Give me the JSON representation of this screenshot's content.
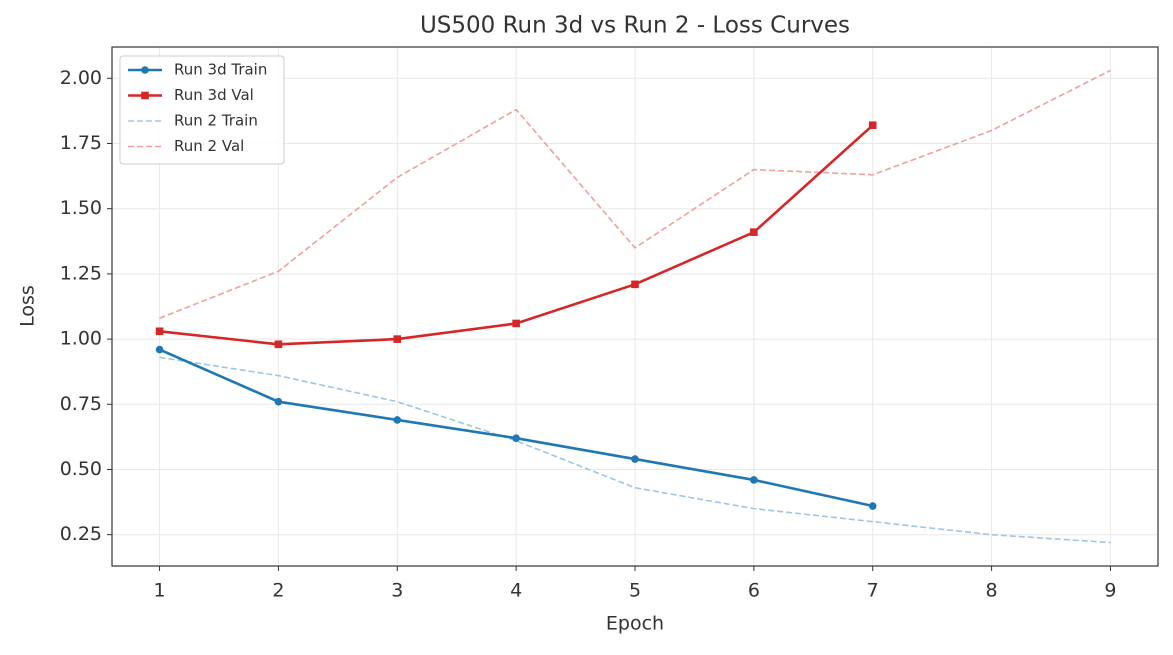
{
  "chart_data": {
    "type": "line",
    "title": "US500 Run 3d vs Run 2 - Loss Curves",
    "x_label": "Epoch",
    "y_label": "Loss",
    "x": [
      1,
      2,
      3,
      4,
      5,
      6,
      7,
      8,
      9
    ],
    "series": [
      {
        "name": "Run 3d Train",
        "color": "#1f77b4",
        "marker": "circle",
        "linestyle": "solid",
        "values": [
          0.96,
          0.76,
          0.69,
          0.62,
          0.54,
          0.46,
          0.36,
          null,
          null
        ]
      },
      {
        "name": "Run 3d Val",
        "color": "#d62728",
        "marker": "square",
        "linestyle": "solid",
        "values": [
          1.03,
          0.98,
          1.0,
          1.06,
          1.21,
          1.41,
          1.82,
          null,
          null
        ]
      },
      {
        "name": "Run 2 Train",
        "color": "#9ec5e3",
        "marker": "none",
        "linestyle": "dashed",
        "values": [
          0.93,
          0.86,
          0.76,
          0.61,
          0.43,
          0.35,
          0.3,
          0.25,
          0.22
        ]
      },
      {
        "name": "Run 2 Val",
        "color": "#efa09c",
        "marker": "none",
        "linestyle": "dashed",
        "values": [
          1.08,
          1.26,
          1.62,
          1.88,
          1.35,
          1.65,
          1.63,
          1.8,
          2.03
        ]
      }
    ],
    "xlim": [
      0.6,
      9.4
    ],
    "ylim": [
      0.13,
      2.12
    ],
    "xticks": [
      1,
      2,
      3,
      4,
      5,
      6,
      7,
      8,
      9
    ],
    "yticks": [
      0.25,
      {
        "value": 0.5,
        "label": "0.50"
      },
      0.75,
      {
        "value": 1,
        "label": "1.00"
      },
      1.25,
      {
        "value": 1.5,
        "label": "1.50"
      },
      1.75,
      {
        "value": 2,
        "label": "2.00"
      }
    ],
    "grid": true,
    "legend": "upper-left"
  }
}
